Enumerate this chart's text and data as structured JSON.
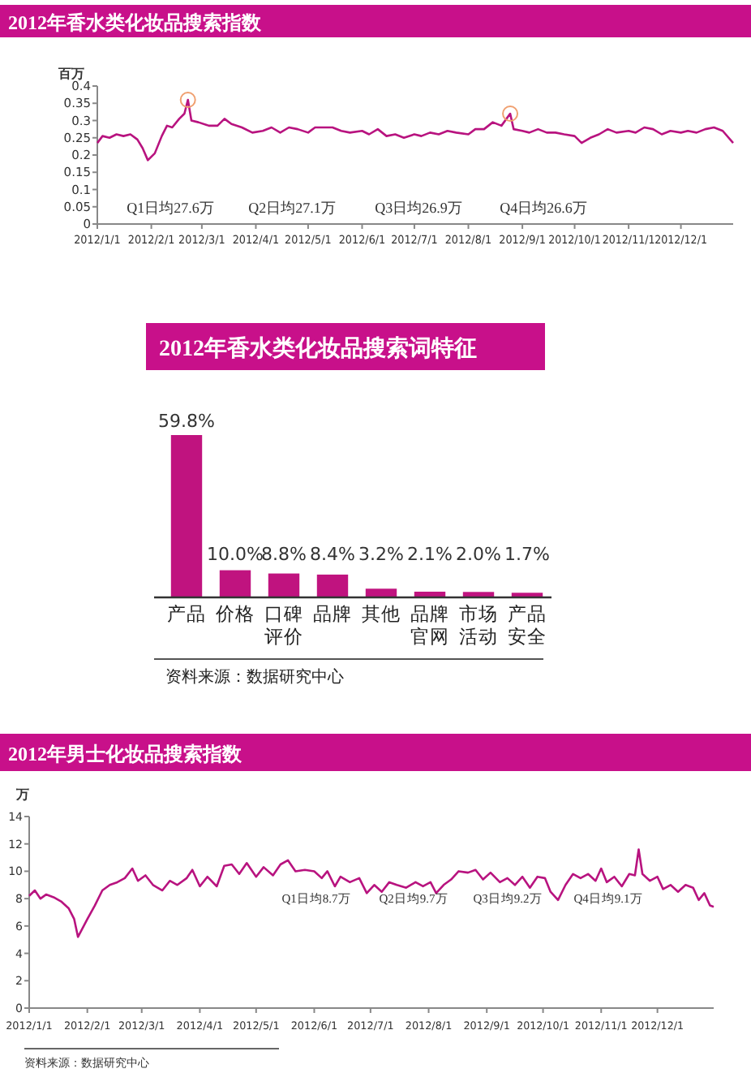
{
  "chart_data": [
    {
      "type": "line",
      "title": "2012年香水类化妆品搜索指数",
      "ylabel": "百万",
      "annotations": [
        "Q1日均27.6万",
        "Q2日均27.1万",
        "Q3日均26.9万",
        "Q4日均26.6万"
      ],
      "x": [
        "2012-01-01",
        "2012-01-04",
        "2012-01-08",
        "2012-01-12",
        "2012-01-16",
        "2012-01-20",
        "2012-01-24",
        "2012-01-27",
        "2012-01-30",
        "2012-02-03",
        "2012-02-07",
        "2012-02-10",
        "2012-02-13",
        "2012-02-17",
        "2012-02-20",
        "2012-02-22",
        "2012-02-24",
        "2012-02-28",
        "2012-03-05",
        "2012-03-10",
        "2012-03-14",
        "2012-03-18",
        "2012-03-24",
        "2012-03-30",
        "2012-04-05",
        "2012-04-10",
        "2012-04-15",
        "2012-04-20",
        "2012-04-25",
        "2012-05-01",
        "2012-05-05",
        "2012-05-10",
        "2012-05-15",
        "2012-05-20",
        "2012-05-25",
        "2012-06-01",
        "2012-06-05",
        "2012-06-10",
        "2012-06-15",
        "2012-06-20",
        "2012-06-25",
        "2012-07-01",
        "2012-07-05",
        "2012-07-10",
        "2012-07-15",
        "2012-07-20",
        "2012-07-25",
        "2012-08-01",
        "2012-08-05",
        "2012-08-10",
        "2012-08-15",
        "2012-08-20",
        "2012-08-25",
        "2012-08-27",
        "2012-09-01",
        "2012-09-05",
        "2012-09-10",
        "2012-09-15",
        "2012-09-20",
        "2012-09-25",
        "2012-10-01",
        "2012-10-05",
        "2012-10-10",
        "2012-10-15",
        "2012-10-20",
        "2012-10-25",
        "2012-11-01",
        "2012-11-05",
        "2012-11-10",
        "2012-11-15",
        "2012-11-20",
        "2012-11-25",
        "2012-12-01",
        "2012-12-05",
        "2012-12-10",
        "2012-12-15",
        "2012-12-20",
        "2012-12-25",
        "2012-12-31"
      ],
      "series": [
        {
          "color": "#b8137f",
          "values": [
            0.235,
            0.255,
            0.25,
            0.26,
            0.255,
            0.26,
            0.245,
            0.22,
            0.185,
            0.205,
            0.255,
            0.285,
            0.28,
            0.305,
            0.32,
            0.36,
            0.3,
            0.295,
            0.285,
            0.285,
            0.305,
            0.29,
            0.28,
            0.265,
            0.27,
            0.28,
            0.265,
            0.28,
            0.275,
            0.265,
            0.28,
            0.28,
            0.28,
            0.27,
            0.265,
            0.27,
            0.26,
            0.275,
            0.255,
            0.26,
            0.25,
            0.26,
            0.255,
            0.265,
            0.26,
            0.27,
            0.265,
            0.26,
            0.275,
            0.275,
            0.295,
            0.285,
            0.32,
            0.275,
            0.27,
            0.265,
            0.275,
            0.265,
            0.265,
            0.26,
            0.255,
            0.235,
            0.25,
            0.26,
            0.275,
            0.265,
            0.27,
            0.265,
            0.28,
            0.275,
            0.26,
            0.27,
            0.265,
            0.27,
            0.265,
            0.275,
            0.28,
            0.27,
            0.235
          ]
        }
      ],
      "xlim": [
        "2012-01-01",
        "2012-12-31"
      ],
      "ylim": [
        0,
        0.4
      ],
      "yticks": [
        0,
        0.05,
        0.1,
        0.15,
        0.2,
        0.25,
        0.3,
        0.35,
        0.4
      ],
      "xticks": [
        {
          "value": "2012-01-01",
          "label": "2012/1/1"
        },
        {
          "value": "2012-02-01",
          "label": "2012/2/1"
        },
        {
          "value": "2012-03-01",
          "label": "2012/3/1"
        },
        {
          "value": "2012-04-01",
          "label": "2012/4/1"
        },
        {
          "value": "2012-05-01",
          "label": "2012/5/1"
        },
        {
          "value": "2012-06-01",
          "label": "2012/6/1"
        },
        {
          "value": "2012-07-01",
          "label": "2012/7/1"
        },
        {
          "value": "2012-08-01",
          "label": "2012/8/1"
        },
        {
          "value": "2012-09-01",
          "label": "2012/9/1"
        },
        {
          "value": "2012-10-01",
          "label": "2012/10/1"
        },
        {
          "value": "2012-11-01",
          "label": "2012/11/1"
        },
        {
          "value": "2012-12-01",
          "label": "2012/12/1"
        }
      ]
    },
    {
      "type": "bar",
      "title": "2012年香水类化妆品搜索词特征",
      "categories": [
        "产品",
        "价格",
        "口碑评价",
        "品牌",
        "其他",
        "品牌官网",
        "市场活动",
        "产品安全"
      ],
      "values": [
        59.8,
        10.0,
        8.8,
        8.4,
        3.2,
        2.1,
        2.0,
        1.7
      ],
      "value_labels": [
        "59.8%",
        "10.0%",
        "8.8%",
        "8.4%",
        "3.2%",
        "2.1%",
        "2.0%",
        "1.7%"
      ],
      "color": "#c0137f",
      "annotations": [
        "资料来源：数据研究中心"
      ]
    },
    {
      "type": "line",
      "title": "2012年男士化妆品搜索指数",
      "ylabel": "万",
      "annotations": [
        "Q1日均8.7万",
        "Q2日均9.7万",
        "Q3日均9.2万",
        "Q4日均9.1万",
        "资料来源：数据研究中心"
      ],
      "x": [
        "2012-01-01",
        "2012-01-04",
        "2012-01-07",
        "2012-01-10",
        "2012-01-14",
        "2012-01-18",
        "2012-01-22",
        "2012-01-25",
        "2012-01-27",
        "2012-02-01",
        "2012-02-05",
        "2012-02-09",
        "2012-02-13",
        "2012-02-17",
        "2012-02-21",
        "2012-02-25",
        "2012-02-28",
        "2012-03-03",
        "2012-03-07",
        "2012-03-12",
        "2012-03-16",
        "2012-03-20",
        "2012-03-25",
        "2012-03-28",
        "2012-04-01",
        "2012-04-05",
        "2012-04-10",
        "2012-04-14",
        "2012-04-18",
        "2012-04-22",
        "2012-04-26",
        "2012-05-01",
        "2012-05-05",
        "2012-05-10",
        "2012-05-14",
        "2012-05-18",
        "2012-05-22",
        "2012-05-27",
        "2012-06-01",
        "2012-06-05",
        "2012-06-08",
        "2012-06-12",
        "2012-06-15",
        "2012-06-20",
        "2012-06-25",
        "2012-06-29",
        "2012-07-03",
        "2012-07-07",
        "2012-07-11",
        "2012-07-15",
        "2012-07-20",
        "2012-07-25",
        "2012-07-29",
        "2012-08-02",
        "2012-08-05",
        "2012-08-09",
        "2012-08-13",
        "2012-08-17",
        "2012-08-22",
        "2012-08-26",
        "2012-08-30",
        "2012-09-03",
        "2012-09-08",
        "2012-09-12",
        "2012-09-16",
        "2012-09-20",
        "2012-09-24",
        "2012-09-28",
        "2012-10-02",
        "2012-10-05",
        "2012-10-09",
        "2012-10-13",
        "2012-10-17",
        "2012-10-21",
        "2012-10-25",
        "2012-10-29",
        "2012-11-01",
        "2012-11-04",
        "2012-11-08",
        "2012-11-12",
        "2012-11-16",
        "2012-11-19",
        "2012-11-21",
        "2012-11-23",
        "2012-11-27",
        "2012-12-01",
        "2012-12-04",
        "2012-12-08",
        "2012-12-12",
        "2012-12-16",
        "2012-12-20",
        "2012-12-23",
        "2012-12-26",
        "2012-12-29",
        "2012-12-31"
      ],
      "series": [
        {
          "color": "#b8137f",
          "values": [
            8.2,
            8.6,
            8.0,
            8.3,
            8.1,
            7.8,
            7.3,
            6.5,
            5.2,
            6.5,
            7.5,
            8.6,
            9.0,
            9.2,
            9.5,
            10.2,
            9.3,
            9.7,
            9.0,
            8.6,
            9.3,
            9.0,
            9.5,
            10.1,
            8.9,
            9.6,
            8.9,
            10.4,
            10.5,
            9.8,
            10.6,
            9.6,
            10.3,
            9.7,
            10.5,
            10.8,
            10.0,
            10.1,
            10.0,
            9.5,
            10.0,
            8.9,
            9.6,
            9.2,
            9.5,
            8.4,
            9.0,
            8.5,
            9.2,
            9.0,
            8.8,
            9.2,
            8.9,
            9.2,
            8.4,
            9.0,
            9.4,
            10.0,
            9.9,
            10.1,
            9.4,
            9.9,
            9.2,
            9.5,
            9.0,
            9.6,
            8.8,
            9.6,
            9.5,
            8.5,
            7.9,
            9.0,
            9.8,
            9.5,
            9.8,
            9.3,
            10.2,
            9.2,
            9.6,
            8.9,
            9.8,
            9.7,
            11.6,
            9.8,
            9.3,
            9.6,
            8.7,
            9.0,
            8.5,
            9.0,
            8.8,
            7.9,
            8.4,
            7.5,
            7.4
          ]
        }
      ],
      "xlim": [
        "2012-01-01",
        "2012-12-31"
      ],
      "ylim": [
        0,
        14
      ],
      "yticks": [
        0,
        2,
        4,
        6,
        8,
        10,
        12,
        14
      ],
      "xticks": [
        {
          "value": "2012-01-01",
          "label": "2012/1/1"
        },
        {
          "value": "2012-02-01",
          "label": "2012/2/1"
        },
        {
          "value": "2012-03-01",
          "label": "2012/3/1"
        },
        {
          "value": "2012-04-01",
          "label": "2012/4/1"
        },
        {
          "value": "2012-05-01",
          "label": "2012/5/1"
        },
        {
          "value": "2012-06-01",
          "label": "2012/6/1"
        },
        {
          "value": "2012-07-01",
          "label": "2012/7/1"
        },
        {
          "value": "2012-08-01",
          "label": "2012/8/1"
        },
        {
          "value": "2012-09-01",
          "label": "2012/9/1"
        },
        {
          "value": "2012-10-01",
          "label": "2012/10/1"
        },
        {
          "value": "2012-11-01",
          "label": "2012/11/1"
        },
        {
          "value": "2012-12-01",
          "label": "2012/12/1"
        }
      ]
    }
  ]
}
